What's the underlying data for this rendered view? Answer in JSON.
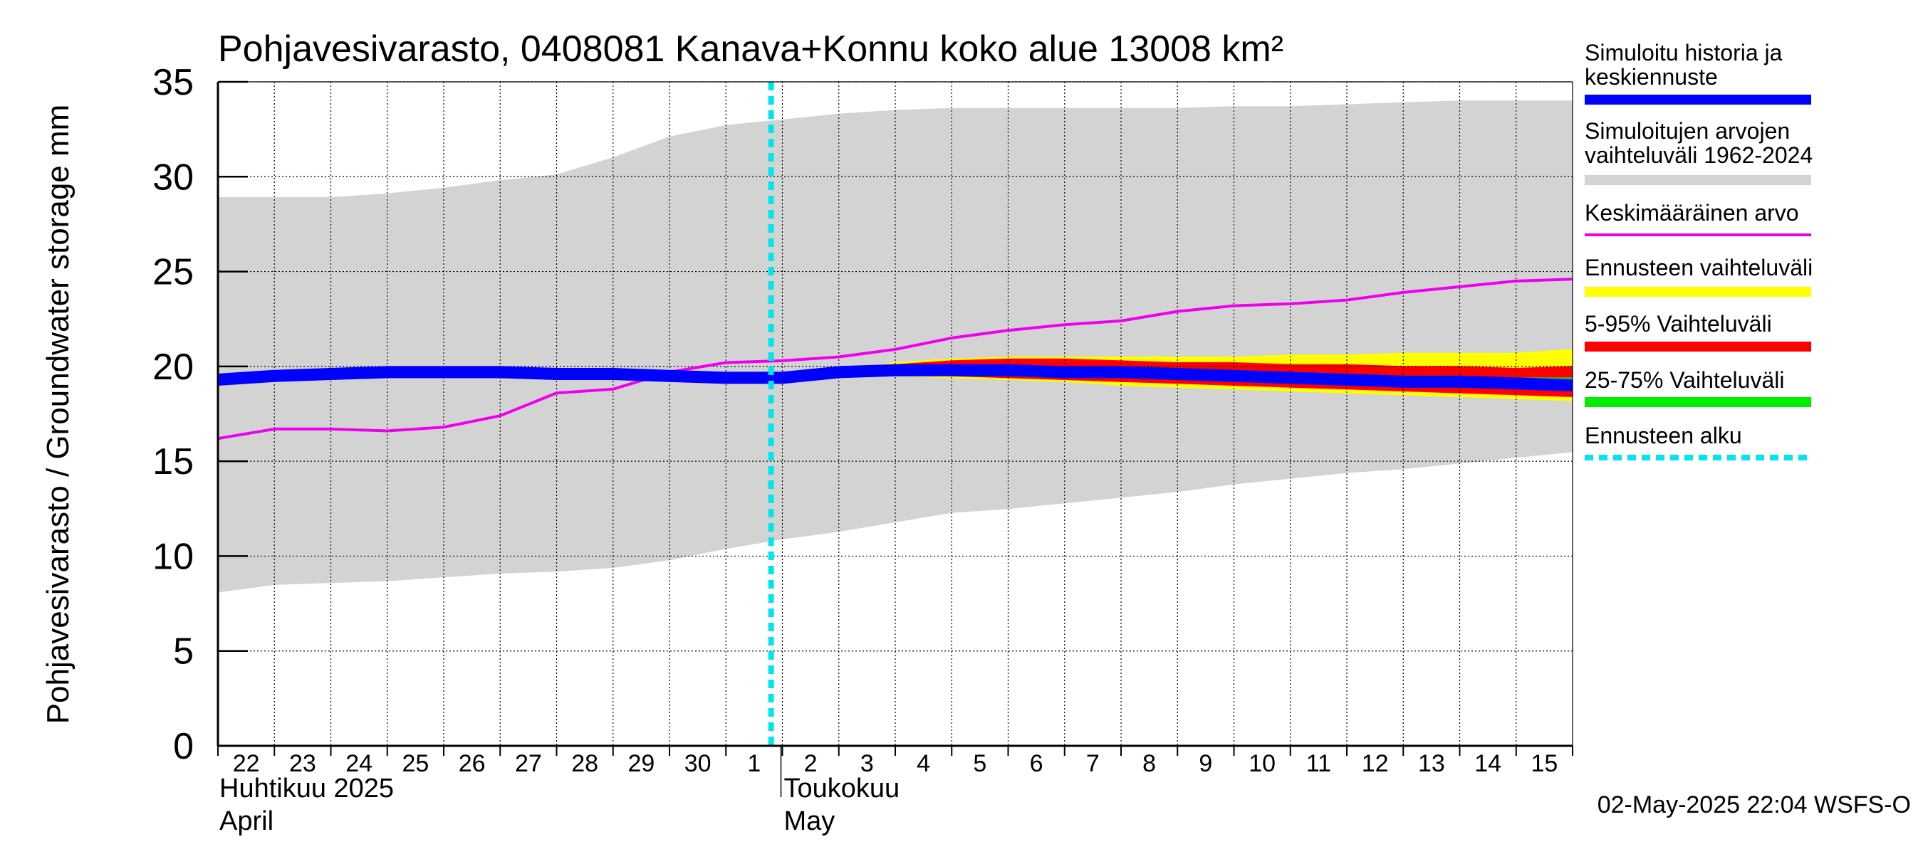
{
  "title": "Pohjavesivarasto, 0408081 Kanava+Konnu koko alue 13008 km²",
  "footer": "02-May-2025 22:04 WSFS-O",
  "chart_data": {
    "type": "area",
    "title": "Pohjavesivarasto, 0408081 Kanava+Konnu koko alue 13008 km²",
    "ylabel": "Pohjavesivarasto / Groundwater storage   mm",
    "ylim": [
      0,
      35
    ],
    "yticks": [
      0,
      5,
      10,
      15,
      20,
      25,
      30,
      35
    ],
    "grid": true,
    "legend_position": "right",
    "x_start": "2025-04-22",
    "x_end": "2025-05-16",
    "x_tick_labels": [
      "22",
      "23",
      "24",
      "25",
      "26",
      "27",
      "28",
      "29",
      "30",
      "1",
      "2",
      "3",
      "4",
      "5",
      "6",
      "7",
      "8",
      "9",
      "10",
      "11",
      "12",
      "13",
      "14",
      "15"
    ],
    "month_labels": [
      {
        "date": "2025-04-22",
        "line1": "Huhtikuu  2025",
        "line2": "April"
      },
      {
        "date": "2025-05-02",
        "line1": "Toukokuu",
        "line2": "May"
      }
    ],
    "forecast_start": "2025-05-02",
    "dates": [
      "2025-04-22",
      "2025-04-23",
      "2025-04-24",
      "2025-04-25",
      "2025-04-26",
      "2025-04-27",
      "2025-04-28",
      "2025-04-29",
      "2025-04-30",
      "2025-05-01",
      "2025-05-02",
      "2025-05-03",
      "2025-05-04",
      "2025-05-05",
      "2025-05-06",
      "2025-05-07",
      "2025-05-08",
      "2025-05-09",
      "2025-05-10",
      "2025-05-11",
      "2025-05-12",
      "2025-05-13",
      "2025-05-14",
      "2025-05-15",
      "2025-05-16"
    ],
    "bands": [
      {
        "name": "Simuloitujen arvojen vaihteluväli 1962-2024",
        "color": "#d3d3d3",
        "lower": [
          8.1,
          8.5,
          8.6,
          8.7,
          8.9,
          9.1,
          9.2,
          9.4,
          9.8,
          10.4,
          10.9,
          11.3,
          11.8,
          12.3,
          12.5,
          12.8,
          13.1,
          13.4,
          13.8,
          14.1,
          14.4,
          14.6,
          14.9,
          15.2,
          15.5
        ],
        "upper": [
          28.9,
          28.9,
          28.9,
          29.1,
          29.4,
          29.8,
          30.1,
          31.0,
          32.1,
          32.7,
          33.0,
          33.3,
          33.5,
          33.6,
          33.6,
          33.6,
          33.6,
          33.6,
          33.7,
          33.7,
          33.8,
          33.9,
          34.0,
          34.0,
          34.0
        ]
      },
      {
        "name": "Ennusteen vaihteluväli",
        "color": "#ffff00",
        "start_index": 10,
        "lower": [
          19.5,
          19.7,
          19.5,
          19.4,
          19.3,
          19.2,
          19.0,
          18.9,
          18.8,
          18.7,
          18.6,
          18.5,
          18.4,
          18.3,
          18.2
        ],
        "upper": [
          19.5,
          19.8,
          20.2,
          20.4,
          20.5,
          20.5,
          20.5,
          20.5,
          20.5,
          20.6,
          20.6,
          20.7,
          20.7,
          20.7,
          20.9
        ]
      },
      {
        "name": "5-95% Vaihteluväli",
        "color": "#ff0000",
        "start_index": 10,
        "lower": [
          19.5,
          19.7,
          19.6,
          19.5,
          19.4,
          19.3,
          19.2,
          19.1,
          19.0,
          18.9,
          18.8,
          18.7,
          18.6,
          18.5,
          18.4
        ],
        "upper": [
          19.5,
          19.8,
          20.1,
          20.3,
          20.4,
          20.4,
          20.3,
          20.2,
          20.2,
          20.1,
          20.1,
          20.0,
          20.0,
          19.9,
          20.0
        ]
      },
      {
        "name": "25-75% Vaihteluväli",
        "color": "#00ee00",
        "start_index": 10,
        "lower": [
          19.5,
          19.7,
          19.7,
          19.7,
          19.6,
          19.6,
          19.5,
          19.4,
          19.3,
          19.2,
          19.2,
          19.1,
          19.0,
          19.0,
          18.9
        ],
        "upper": [
          19.5,
          19.8,
          19.9,
          20.0,
          20.0,
          19.9,
          19.9,
          19.8,
          19.7,
          19.7,
          19.6,
          19.5,
          19.5,
          19.4,
          19.4
        ]
      }
    ],
    "series": [
      {
        "name": "Keskimääräinen arvo",
        "color": "#ee00ee",
        "values": [
          16.2,
          16.7,
          16.7,
          16.6,
          16.8,
          17.4,
          18.6,
          18.8,
          19.7,
          20.2,
          20.3,
          20.5,
          20.9,
          21.5,
          21.9,
          22.2,
          22.4,
          22.9,
          23.2,
          23.3,
          23.5,
          23.9,
          24.2,
          24.5,
          24.6
        ]
      },
      {
        "name": "Simuloitu historia ja keskiennuste",
        "color": "#0000ff",
        "values": [
          19.3,
          19.5,
          19.6,
          19.7,
          19.7,
          19.7,
          19.6,
          19.6,
          19.5,
          19.4,
          19.4,
          19.7,
          19.8,
          19.8,
          19.8,
          19.7,
          19.7,
          19.6,
          19.5,
          19.4,
          19.3,
          19.2,
          19.2,
          19.1,
          19.0
        ]
      }
    ]
  },
  "legend": [
    {
      "label": "Simuloitu historia ja keskiennuste",
      "color": "#0000ff",
      "style": "thick"
    },
    {
      "label": "Simuloitujen arvojen vaihteluväli 1962-2024",
      "color": "#d3d3d3",
      "style": "thick"
    },
    {
      "label": "Keskimääräinen arvo",
      "color": "#ee00ee",
      "style": "thin"
    },
    {
      "label": "Ennusteen vaihteluväli",
      "color": "#ffff00",
      "style": "thick"
    },
    {
      "label": "5-95% Vaihteluväli",
      "color": "#ff0000",
      "style": "thick"
    },
    {
      "label": "25-75% Vaihteluväli",
      "color": "#00ee00",
      "style": "thick"
    },
    {
      "label": "Ennusteen alku",
      "color": "#00e5ee",
      "style": "dashed"
    }
  ]
}
